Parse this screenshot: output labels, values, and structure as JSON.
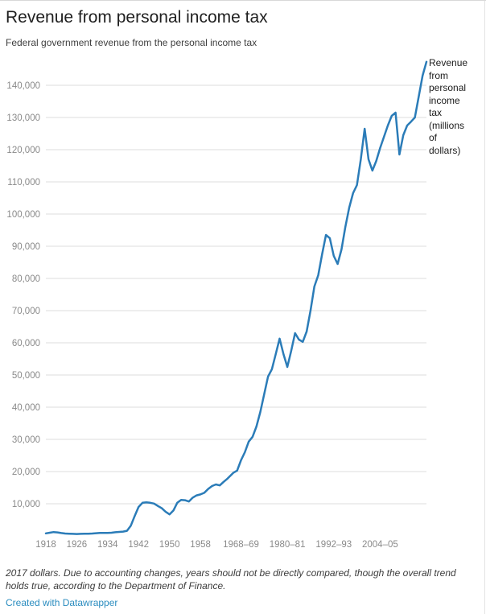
{
  "header": {
    "title": "Revenue from personal income tax",
    "subtitle": "Federal government revenue from the personal income tax"
  },
  "series_label": {
    "text": "Revenue from personal income tax (millions of dollars)",
    "lines": [
      "Revenue",
      "from",
      "personal",
      "income",
      "tax",
      "(millions",
      "of",
      "dollars)"
    ]
  },
  "footer": {
    "notes": "2017 dollars. Due to accounting changes, years should not be directly compared, though the overall trend holds true, according to the Department of Finance.",
    "credit": "Created with Datawrapper"
  },
  "colors": {
    "line": "#2b7cb8",
    "gridline": "#dcdcdc",
    "axis_text": "#8a8a8a",
    "credit_link": "#2a8cbf"
  },
  "chart_data": {
    "type": "line",
    "title": "Revenue from personal income tax",
    "subtitle": "Federal government revenue from the personal income tax",
    "series_name": "Revenue from personal income tax (millions of dollars)",
    "xlabel": "",
    "ylabel": "",
    "x_range": [
      1918,
      2016.5
    ],
    "ylim": [
      0,
      150000
    ],
    "grid": true,
    "legend_position": "right-of-line-end",
    "y_ticks": [
      {
        "value": 10000,
        "label": "10,000"
      },
      {
        "value": 20000,
        "label": "20,000"
      },
      {
        "value": 30000,
        "label": "30,000"
      },
      {
        "value": 40000,
        "label": "40,000"
      },
      {
        "value": 50000,
        "label": "50,000"
      },
      {
        "value": 60000,
        "label": "60,000"
      },
      {
        "value": 70000,
        "label": "70,000"
      },
      {
        "value": 80000,
        "label": "80,000"
      },
      {
        "value": 90000,
        "label": "90,000"
      },
      {
        "value": 100000,
        "label": "100,000"
      },
      {
        "value": 110000,
        "label": "110,000"
      },
      {
        "value": 120000,
        "label": "120,000"
      },
      {
        "value": 130000,
        "label": "130,000"
      },
      {
        "value": 140000,
        "label": "140,000"
      }
    ],
    "x_ticks": [
      {
        "pos": 1918,
        "label": "1918"
      },
      {
        "pos": 1926,
        "label": "1926"
      },
      {
        "pos": 1934,
        "label": "1934"
      },
      {
        "pos": 1942,
        "label": "1942"
      },
      {
        "pos": 1950,
        "label": "1950"
      },
      {
        "pos": 1958,
        "label": "1958"
      },
      {
        "pos": 1968.5,
        "label": "1968–69"
      },
      {
        "pos": 1980.5,
        "label": "1980–81"
      },
      {
        "pos": 1992.5,
        "label": "1992–93"
      },
      {
        "pos": 2004.5,
        "label": "2004–05"
      }
    ],
    "points": [
      [
        1918,
        800
      ],
      [
        1919,
        1000
      ],
      [
        1920,
        1200
      ],
      [
        1921,
        1100
      ],
      [
        1922,
        900
      ],
      [
        1923,
        750
      ],
      [
        1924,
        700
      ],
      [
        1925,
        650
      ],
      [
        1926,
        600
      ],
      [
        1927,
        650
      ],
      [
        1928,
        700
      ],
      [
        1929,
        700
      ],
      [
        1930,
        750
      ],
      [
        1931,
        850
      ],
      [
        1932,
        950
      ],
      [
        1933,
        950
      ],
      [
        1934,
        950
      ],
      [
        1935,
        1000
      ],
      [
        1936,
        1150
      ],
      [
        1937,
        1250
      ],
      [
        1938,
        1350
      ],
      [
        1939,
        1600
      ],
      [
        1940,
        3200
      ],
      [
        1941,
        6200
      ],
      [
        1942,
        9000
      ],
      [
        1943,
        10300
      ],
      [
        1944,
        10450
      ],
      [
        1945,
        10300
      ],
      [
        1946,
        10050
      ],
      [
        1947,
        9300
      ],
      [
        1948,
        8600
      ],
      [
        1949,
        7500
      ],
      [
        1950,
        6700
      ],
      [
        1951,
        7900
      ],
      [
        1952,
        10300
      ],
      [
        1953,
        11200
      ],
      [
        1954,
        11100
      ],
      [
        1955,
        10700
      ],
      [
        1956,
        11900
      ],
      [
        1957,
        12600
      ],
      [
        1958,
        12900
      ],
      [
        1959,
        13400
      ],
      [
        1960,
        14600
      ],
      [
        1961,
        15500
      ],
      [
        1962,
        16000
      ],
      [
        1963,
        15700
      ],
      [
        1964,
        16800
      ],
      [
        1965,
        17800
      ],
      [
        1966.5,
        19600
      ],
      [
        1967.5,
        20300
      ],
      [
        1968.5,
        23500
      ],
      [
        1969.5,
        26000
      ],
      [
        1970.5,
        29300
      ],
      [
        1971.5,
        30800
      ],
      [
        1972.5,
        34000
      ],
      [
        1973.5,
        38500
      ],
      [
        1974.5,
        44000
      ],
      [
        1975.5,
        49500
      ],
      [
        1976.5,
        51800
      ],
      [
        1977.5,
        56500
      ],
      [
        1978.5,
        61300
      ],
      [
        1979.5,
        56500
      ],
      [
        1980.5,
        52500
      ],
      [
        1981.5,
        57500
      ],
      [
        1982.5,
        63000
      ],
      [
        1983.5,
        61000
      ],
      [
        1984.5,
        60300
      ],
      [
        1985.5,
        63500
      ],
      [
        1986.5,
        70000
      ],
      [
        1987.5,
        77500
      ],
      [
        1988.5,
        81000
      ],
      [
        1989.5,
        87500
      ],
      [
        1990.5,
        93500
      ],
      [
        1991.5,
        92500
      ],
      [
        1992.5,
        87000
      ],
      [
        1993.5,
        84500
      ],
      [
        1994.5,
        89000
      ],
      [
        1995.5,
        96000
      ],
      [
        1996.5,
        102000
      ],
      [
        1997.5,
        106500
      ],
      [
        1998.5,
        109000
      ],
      [
        1999.5,
        117000
      ],
      [
        2000.5,
        126500
      ],
      [
        2001.5,
        117000
      ],
      [
        2002.5,
        113500
      ],
      [
        2003.5,
        116500
      ],
      [
        2004.5,
        120500
      ],
      [
        2005.5,
        124000
      ],
      [
        2006.5,
        127500
      ],
      [
        2007.5,
        130500
      ],
      [
        2008.5,
        131500
      ],
      [
        2009.5,
        118500
      ],
      [
        2010.5,
        124500
      ],
      [
        2011.5,
        127500
      ],
      [
        2012.5,
        128700
      ],
      [
        2013.5,
        130000
      ],
      [
        2014.5,
        136500
      ],
      [
        2015.5,
        143000
      ],
      [
        2016.5,
        147300
      ]
    ]
  }
}
